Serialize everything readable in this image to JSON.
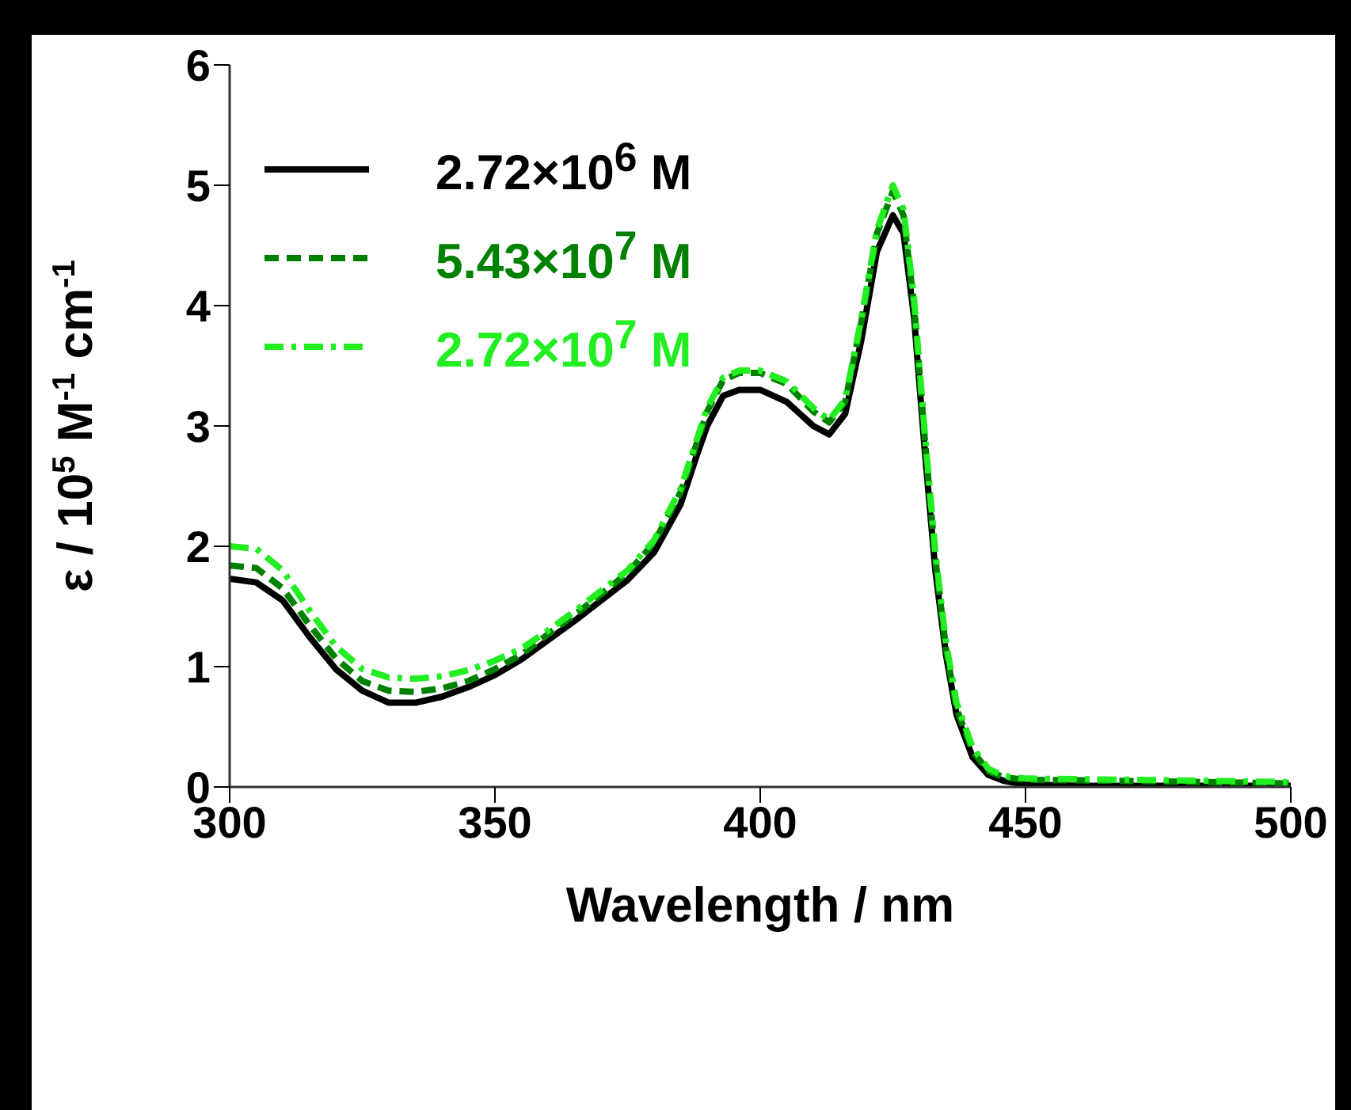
{
  "chart_data": {
    "type": "line",
    "xlabel": "Wavelength / nm",
    "ylabel": "ε / 10$^{5}$ M$^{-1}$ cm$^{-1}$",
    "xlim": [
      300,
      500
    ],
    "xticks": [
      300,
      350,
      400,
      450,
      500
    ],
    "ylim": [
      0,
      6
    ],
    "yticks": [
      0,
      1,
      2,
      3,
      4,
      5,
      6
    ],
    "grid": false,
    "legend": "top left",
    "marker": "none",
    "series": [
      {
        "name": "2.72×10$^{6}$ M",
        "color": "#000000",
        "line_style": "solid",
        "x": [
          300,
          305,
          310,
          315,
          320,
          325,
          330,
          335,
          340,
          345,
          350,
          355,
          360,
          365,
          370,
          375,
          380,
          385,
          388,
          390,
          393,
          396,
          400,
          405,
          410,
          413,
          416,
          419,
          422,
          425,
          427,
          429,
          431,
          433,
          435,
          437,
          440,
          443,
          446,
          450,
          460,
          500
        ],
        "values": [
          1.73,
          1.7,
          1.55,
          1.25,
          0.98,
          0.8,
          0.7,
          0.7,
          0.75,
          0.83,
          0.93,
          1.06,
          1.22,
          1.38,
          1.55,
          1.72,
          1.95,
          2.35,
          2.75,
          3.0,
          3.25,
          3.3,
          3.3,
          3.2,
          3.0,
          2.93,
          3.1,
          3.7,
          4.45,
          4.75,
          4.6,
          3.9,
          2.8,
          1.8,
          1.1,
          0.6,
          0.25,
          0.1,
          0.05,
          0.02,
          0.01,
          0.01
        ]
      },
      {
        "name": "5.43×10$^{7}$ M",
        "color": "#008000",
        "line_style": "dashed",
        "x": [
          300,
          305,
          310,
          315,
          320,
          325,
          330,
          335,
          340,
          345,
          350,
          355,
          360,
          365,
          370,
          375,
          380,
          385,
          388,
          390,
          393,
          396,
          400,
          405,
          410,
          413,
          416,
          419,
          422,
          425,
          427,
          429,
          431,
          433,
          435,
          437,
          440,
          443,
          446,
          450,
          470,
          500
        ],
        "values": [
          1.84,
          1.82,
          1.65,
          1.35,
          1.07,
          0.88,
          0.8,
          0.79,
          0.82,
          0.88,
          0.98,
          1.1,
          1.27,
          1.43,
          1.6,
          1.78,
          2.03,
          2.45,
          2.85,
          3.12,
          3.38,
          3.44,
          3.44,
          3.35,
          3.12,
          3.03,
          3.2,
          3.85,
          4.6,
          4.95,
          4.75,
          4.0,
          2.9,
          1.9,
          1.15,
          0.65,
          0.3,
          0.13,
          0.08,
          0.06,
          0.05,
          0.03
        ]
      },
      {
        "name": "2.72×10$^{7}$ M",
        "color": "#22ee22",
        "line_style": "dashdot",
        "x": [
          300,
          305,
          310,
          315,
          320,
          325,
          330,
          335,
          340,
          345,
          350,
          355,
          360,
          365,
          370,
          375,
          380,
          385,
          388,
          390,
          393,
          396,
          400,
          405,
          410,
          413,
          416,
          419,
          422,
          425,
          427,
          429,
          431,
          433,
          435,
          437,
          440,
          443,
          446,
          450,
          470,
          500
        ],
        "values": [
          2.0,
          1.98,
          1.8,
          1.47,
          1.17,
          0.98,
          0.91,
          0.9,
          0.92,
          0.97,
          1.05,
          1.15,
          1.3,
          1.46,
          1.63,
          1.8,
          2.05,
          2.48,
          2.88,
          3.15,
          3.4,
          3.46,
          3.46,
          3.37,
          3.15,
          3.05,
          3.22,
          3.88,
          4.63,
          5.0,
          4.8,
          4.05,
          2.95,
          1.95,
          1.2,
          0.7,
          0.33,
          0.15,
          0.09,
          0.07,
          0.06,
          0.04
        ]
      }
    ]
  }
}
